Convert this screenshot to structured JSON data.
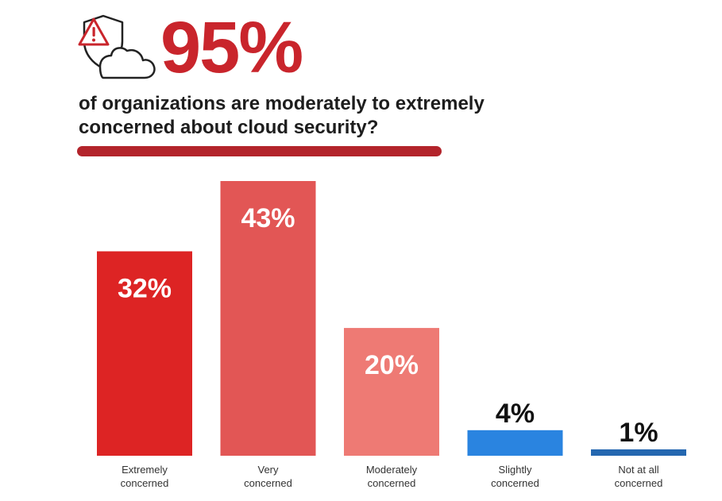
{
  "headline": {
    "stat": "95%",
    "text_line1": "of organizations are moderately to extremely",
    "text_line2": "concerned about cloud security?",
    "icon": "shield-warning-cloud-icon"
  },
  "colors": {
    "accent": "#c9252c",
    "divider": "#b3242b"
  },
  "chart_data": {
    "type": "bar",
    "categories": [
      [
        "Extremely",
        "concerned"
      ],
      [
        "Very",
        "concerned"
      ],
      [
        "Moderately",
        "concerned"
      ],
      [
        "Slightly",
        "concerned"
      ],
      [
        "Not at all",
        "concerned"
      ]
    ],
    "values": [
      32,
      43,
      20,
      4,
      1
    ],
    "value_labels": [
      "32%",
      "43%",
      "20%",
      "4%",
      "1%"
    ],
    "bar_colors": [
      "#dd2424",
      "#e25655",
      "#ee7a74",
      "#2a84e0",
      "#2467b0"
    ],
    "ylim": [
      0,
      43
    ],
    "grid": false,
    "legend": "none"
  }
}
